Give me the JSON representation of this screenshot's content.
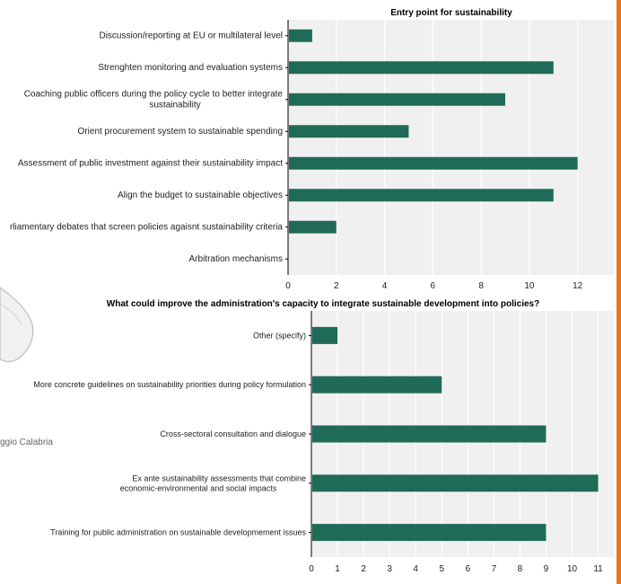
{
  "map": {
    "label": "ggio Calabria",
    "colors": {
      "land": "#f1f1f1",
      "coast": "#bdbdbd"
    }
  },
  "accent_color": "#e87722",
  "chart_data": [
    {
      "type": "bar",
      "orientation": "horizontal",
      "title": "Entry point for sustainability",
      "xlabel": "",
      "ylabel": "",
      "categories": [
        "Discussion/reporting at EU or multilateral level",
        "Strenghten monitoring and evaluation systems",
        "Coaching public officers during the policy cycle to better integrate sustainability",
        "Orient procurement system to sustainable spending",
        "Assessment of public investment against their sustainability impact",
        "Align the budget to sustainable objectives",
        "rliamentary debates that screen policies agaisnt sustainability criteria",
        "Arbitration mechanisms"
      ],
      "values": [
        1,
        11,
        9,
        5,
        12,
        11,
        2,
        0
      ],
      "xlim": [
        0,
        13.5
      ],
      "ticks": [
        0,
        2,
        4,
        6,
        8,
        10,
        12
      ],
      "grid": true,
      "bar_color": "#1f6b57",
      "panel_color": "#f0f0f0"
    },
    {
      "type": "bar",
      "orientation": "horizontal",
      "title": "What could improve the administration's capacity to integrate sustainable development into policies?",
      "xlabel": "",
      "ylabel": "",
      "categories": [
        "Other (specify)",
        "More concrete guidelines on sustainability priorities during policy formulation",
        "Cross-sectoral consultation and dialogue",
        "Ex ante sustainability assessments that combine economic-environmental and social impacts",
        "Training for public administration on sustainable developmement issues"
      ],
      "values": [
        1,
        5,
        9,
        11,
        9
      ],
      "xlim": [
        0,
        11.6
      ],
      "ticks": [
        0,
        1,
        2,
        3,
        4,
        5,
        6,
        7,
        8,
        9,
        10,
        11
      ],
      "grid": true,
      "bar_color": "#1f6b57",
      "panel_color": "#f0f0f0"
    }
  ]
}
